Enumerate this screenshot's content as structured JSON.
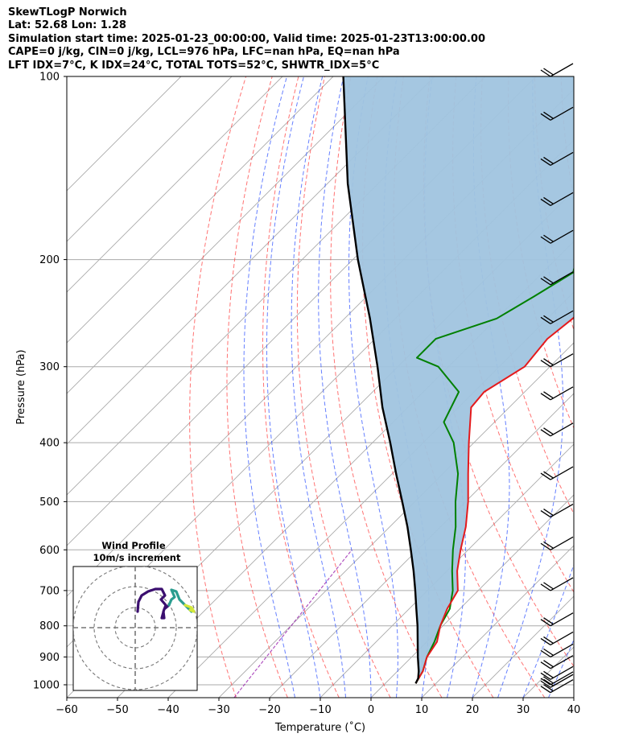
{
  "header": {
    "line1": "SkewTLogP Norwich",
    "line2": "Lat: 52.68   Lon: 1.28",
    "line3": "Simulation start time: 2025-01-23_00:00:00, Valid time: 2025-01-23T13:00:00.00",
    "line4": "CAPE=0 j/kg, CIN=0 j/kg, LCL=976 hPa, LFC=nan hPa, EQ=nan hPa",
    "line5": "LFT IDX=7°C, K IDX=24°C, TOTAL TOTS=52°C, SHWTR_IDX=5°C"
  },
  "inset": {
    "title_line1": "Wind Profile",
    "title_line2": "10m/s increment"
  },
  "colors": {
    "temperature": "#e41a1c",
    "dewpoint": "#008000",
    "parcel": "#000000",
    "cape_fill": "#a0c4df",
    "dry_adiabat": "#ff4444",
    "moist_adiabat": "#3355ff",
    "mixing_ratio": "#9c27b0",
    "isotherm": "#aaaaaa"
  },
  "chart_data": {
    "type": "line",
    "xlabel": "Temperature (˚C)",
    "ylabel": "Pressure (hPa)",
    "xlim": [
      -60,
      40
    ],
    "ylim": [
      1050,
      100
    ],
    "yscale": "log",
    "skew": true,
    "grid": true,
    "x_ticks": [
      "−60",
      "−50",
      "−40",
      "−30",
      "−20",
      "−10",
      "0",
      "10",
      "20",
      "30",
      "40"
    ],
    "y_ticks": [
      "1000",
      "900",
      "800",
      "700",
      "600",
      "500",
      "400",
      "300",
      "200",
      "100"
    ],
    "series": [
      {
        "key": "temperature",
        "pressure": [
          995,
          950,
          900,
          850,
          800,
          750,
          700,
          650,
          600,
          550,
          500,
          450,
          400,
          350,
          330,
          300,
          270,
          250,
          220,
          200,
          180,
          160,
          150,
          140,
          130,
          120,
          110,
          100
        ],
        "values": [
          6,
          5,
          3,
          2,
          -0.5,
          -2.5,
          -4,
          -8,
          -11.5,
          -15,
          -19.5,
          -25,
          -31,
          -37.5,
          -38,
          -35,
          -36,
          -35,
          -35,
          -31,
          -24,
          -18,
          -14.5,
          -12,
          -11.5,
          -12,
          -13.5,
          -16
        ]
      },
      {
        "key": "dewpoint",
        "pressure": [
          995,
          950,
          900,
          850,
          800,
          750,
          700,
          650,
          600,
          550,
          500,
          450,
          400,
          370,
          330,
          300,
          290,
          270,
          250,
          230,
          210,
          190,
          180,
          160,
          140,
          120,
          110,
          100
        ],
        "values": [
          6,
          5,
          3,
          1.5,
          -0.5,
          -2,
          -5,
          -9,
          -13,
          -17,
          -22,
          -27,
          -34,
          -40,
          -43,
          -52,
          -58,
          -58,
          -50,
          -47,
          -44,
          -48,
          -50,
          -49,
          -52,
          -56,
          -60,
          -64
        ]
      },
      {
        "key": "parcel",
        "pressure": [
          995,
          976,
          950,
          900,
          850,
          800,
          750,
          700,
          650,
          600,
          550,
          500,
          450,
          400,
          350,
          300,
          250,
          200,
          150,
          100
        ],
        "values": [
          6,
          5.5,
          4.2,
          1.2,
          -1.8,
          -5,
          -8.6,
          -12.4,
          -16.6,
          -21.3,
          -26.5,
          -32.5,
          -39.2,
          -46.5,
          -55,
          -64,
          -75,
          -89,
          -106,
          -128
        ]
      }
    ],
    "barbs": {
      "pressure": [
        100,
        118,
        140,
        163,
        188,
        220,
        255,
        300,
        340,
        390,
        460,
        530,
        600,
        700,
        800,
        860,
        900,
        940,
        980,
        1000,
        1010,
        1030
      ],
      "note": "wind barbs along right edge"
    },
    "hodograph": {
      "rings_ms": [
        10,
        20,
        30
      ]
    }
  }
}
